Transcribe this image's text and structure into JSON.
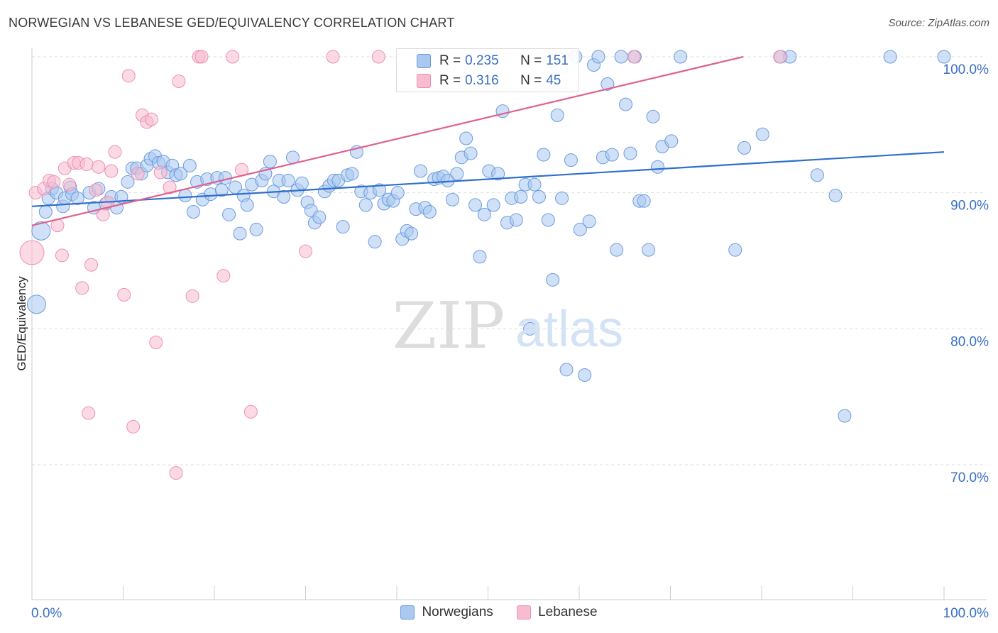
{
  "title": "NORWEGIAN VS LEBANESE GED/EQUIVALENCY CORRELATION CHART",
  "source": "Source: ZipAtlas.com",
  "colors": {
    "norwegian_fill": "#aac8f0",
    "norwegian_stroke": "#6a9be0",
    "norwegian_line": "#2f6fcc",
    "lebanese_fill": "#f8bcd0",
    "lebanese_stroke": "#ee8fb0",
    "lebanese_line": "#e0608e",
    "tick_label": "#3a6fc4",
    "grid": "#dddddd"
  },
  "stats_box": {
    "rows": [
      {
        "series": "Norwegians",
        "r_label": "R =",
        "r_value": "0.235",
        "n_label": "N =",
        "n_value": "151"
      },
      {
        "series": "Lebanese",
        "r_label": "R =",
        "r_value": "0.316",
        "n_label": "N =",
        "n_value": "45"
      }
    ]
  },
  "chart_data": {
    "type": "scatter",
    "title": "NORWEGIAN VS LEBANESE GED/EQUIVALENCY CORRELATION CHART",
    "xlabel": "",
    "ylabel": "GED/Equivalency",
    "x_tick_labels": [
      "0.0%",
      "100.0%"
    ],
    "y_tick_labels": [
      "100.0%",
      "90.0%",
      "80.0%",
      "70.0%"
    ],
    "y_ticks": [
      100,
      90,
      80,
      70
    ],
    "xlim": [
      0,
      100
    ],
    "ylim": [
      60,
      100.8
    ],
    "grid": true,
    "legend": "bottom",
    "series": [
      {
        "name": "Norwegians",
        "trend": {
          "x": [
            0,
            100
          ],
          "y": [
            89.0,
            93.0
          ]
        },
        "points": [
          [
            1.0,
            87.2,
            2
          ],
          [
            0.5,
            81.8,
            2
          ],
          [
            1.5,
            88.6,
            1
          ],
          [
            1.8,
            89.6,
            1
          ],
          [
            2.2,
            90.3,
            1
          ],
          [
            2.7,
            90.0,
            1
          ],
          [
            3.4,
            89.0,
            1
          ],
          [
            3.6,
            89.6,
            1
          ],
          [
            4.2,
            90.4,
            1
          ],
          [
            4.4,
            89.9,
            1
          ],
          [
            5.0,
            89.6,
            1
          ],
          [
            6.3,
            90.0,
            1
          ],
          [
            6.8,
            88.9,
            1
          ],
          [
            7.3,
            90.3,
            1
          ],
          [
            8.1,
            89.2,
            1
          ],
          [
            8.7,
            89.7,
            1
          ],
          [
            9.3,
            88.9,
            1
          ],
          [
            9.8,
            89.7,
            1
          ],
          [
            10.5,
            90.8,
            1
          ],
          [
            11.0,
            91.8,
            1
          ],
          [
            11.5,
            91.8,
            1
          ],
          [
            12.0,
            91.4,
            1
          ],
          [
            12.6,
            92.0,
            1
          ],
          [
            13.0,
            92.5,
            1
          ],
          [
            13.5,
            92.7,
            1
          ],
          [
            13.9,
            92.2,
            1
          ],
          [
            14.4,
            92.3,
            1
          ],
          [
            14.9,
            91.5,
            1
          ],
          [
            15.4,
            92.0,
            1
          ],
          [
            15.8,
            91.3,
            1
          ],
          [
            16.3,
            91.4,
            1
          ],
          [
            16.8,
            89.8,
            1
          ],
          [
            17.3,
            92.0,
            1
          ],
          [
            17.7,
            88.6,
            1
          ],
          [
            18.1,
            90.8,
            1
          ],
          [
            18.7,
            89.5,
            1
          ],
          [
            19.2,
            91.0,
            1
          ],
          [
            19.6,
            89.9,
            1
          ],
          [
            20.3,
            91.1,
            1
          ],
          [
            20.8,
            90.2,
            1
          ],
          [
            21.2,
            91.1,
            1
          ],
          [
            21.6,
            88.4,
            1
          ],
          [
            22.3,
            90.4,
            1
          ],
          [
            22.8,
            87.0,
            1
          ],
          [
            23.2,
            89.8,
            1
          ],
          [
            23.6,
            89.1,
            1
          ],
          [
            24.1,
            90.6,
            1
          ],
          [
            24.6,
            87.3,
            1
          ],
          [
            25.2,
            90.9,
            1
          ],
          [
            25.6,
            91.4,
            1
          ],
          [
            26.1,
            92.3,
            1
          ],
          [
            26.5,
            90.1,
            1
          ],
          [
            27.1,
            90.9,
            1
          ],
          [
            27.6,
            89.7,
            1
          ],
          [
            28.1,
            90.9,
            1
          ],
          [
            28.6,
            92.6,
            1
          ],
          [
            29.1,
            90.2,
            1
          ],
          [
            29.6,
            90.7,
            1
          ],
          [
            30.2,
            89.3,
            1
          ],
          [
            30.6,
            88.7,
            1
          ],
          [
            31.0,
            87.8,
            1
          ],
          [
            31.5,
            88.2,
            1
          ],
          [
            32.1,
            90.1,
            1
          ],
          [
            32.6,
            90.5,
            1
          ],
          [
            33.1,
            90.9,
            1
          ],
          [
            33.6,
            90.9,
            1
          ],
          [
            34.1,
            87.5,
            1
          ],
          [
            34.6,
            91.3,
            1
          ],
          [
            35.1,
            91.4,
            1
          ],
          [
            35.6,
            93.0,
            1
          ],
          [
            36.1,
            90.1,
            1
          ],
          [
            36.6,
            89.1,
            1
          ],
          [
            37.1,
            90.0,
            1
          ],
          [
            37.6,
            86.4,
            1
          ],
          [
            38.1,
            90.2,
            1
          ],
          [
            38.6,
            89.2,
            1
          ],
          [
            39.1,
            89.5,
            1
          ],
          [
            39.6,
            89.4,
            1
          ],
          [
            40.1,
            90.0,
            1
          ],
          [
            40.6,
            86.6,
            1
          ],
          [
            41.1,
            87.2,
            1
          ],
          [
            41.6,
            87.0,
            1
          ],
          [
            42.1,
            88.8,
            1
          ],
          [
            42.6,
            91.6,
            1
          ],
          [
            43.1,
            88.9,
            1
          ],
          [
            43.6,
            88.6,
            1
          ],
          [
            44.1,
            91.0,
            1
          ],
          [
            44.6,
            91.1,
            1
          ],
          [
            45.1,
            91.2,
            1
          ],
          [
            45.6,
            90.9,
            1
          ],
          [
            46.1,
            89.5,
            1
          ],
          [
            46.6,
            91.4,
            1
          ],
          [
            47.1,
            92.6,
            1
          ],
          [
            47.6,
            94.0,
            1
          ],
          [
            48.1,
            92.9,
            1
          ],
          [
            48.6,
            89.1,
            1
          ],
          [
            49.1,
            85.3,
            1
          ],
          [
            49.6,
            88.4,
            1
          ],
          [
            50.1,
            91.6,
            1
          ],
          [
            50.6,
            89.1,
            1
          ],
          [
            51.1,
            91.4,
            1
          ],
          [
            51.6,
            96.0,
            1
          ],
          [
            52.1,
            87.8,
            1
          ],
          [
            52.6,
            89.6,
            1
          ],
          [
            53.1,
            88.0,
            1
          ],
          [
            53.6,
            89.7,
            1
          ],
          [
            54.1,
            90.6,
            1
          ],
          [
            54.6,
            80.0,
            1
          ],
          [
            55.1,
            90.6,
            1
          ],
          [
            55.6,
            89.7,
            1
          ],
          [
            56.1,
            92.8,
            1
          ],
          [
            56.6,
            88.0,
            1
          ],
          [
            57.1,
            83.6,
            1
          ],
          [
            57.6,
            95.7,
            1
          ],
          [
            58.1,
            89.6,
            1
          ],
          [
            58.6,
            77.0,
            1
          ],
          [
            59.1,
            92.4,
            1
          ],
          [
            59.6,
            100.0,
            1
          ],
          [
            60.1,
            87.3,
            1
          ],
          [
            60.6,
            76.6,
            1
          ],
          [
            61.1,
            87.9,
            1
          ],
          [
            61.6,
            99.4,
            1
          ],
          [
            62.1,
            100.0,
            1
          ],
          [
            62.6,
            92.6,
            1
          ],
          [
            63.1,
            98.0,
            1
          ],
          [
            63.6,
            92.8,
            1
          ],
          [
            64.1,
            85.8,
            1
          ],
          [
            64.6,
            100.0,
            1
          ],
          [
            65.1,
            96.5,
            1
          ],
          [
            65.6,
            92.9,
            1
          ],
          [
            66.1,
            100.0,
            1
          ],
          [
            66.6,
            89.4,
            1
          ],
          [
            67.1,
            89.4,
            1
          ],
          [
            67.6,
            85.8,
            1
          ],
          [
            68.1,
            95.6,
            1
          ],
          [
            68.6,
            91.9,
            1
          ],
          [
            69.1,
            93.4,
            1
          ],
          [
            70.1,
            93.8,
            1
          ],
          [
            71.1,
            100.0,
            1
          ],
          [
            77.1,
            85.8,
            1
          ],
          [
            78.1,
            93.3,
            1
          ],
          [
            80.1,
            94.3,
            1
          ],
          [
            82.1,
            100.0,
            1
          ],
          [
            83.1,
            100.0,
            1
          ],
          [
            86.1,
            91.3,
            1
          ],
          [
            88.1,
            89.8,
            1
          ],
          [
            89.1,
            73.6,
            1
          ],
          [
            94.1,
            100.0,
            1
          ],
          [
            100.0,
            100.0,
            1
          ]
        ]
      },
      {
        "name": "Lebanese",
        "trend": {
          "x": [
            0,
            78
          ],
          "y": [
            87.6,
            100.0
          ]
        },
        "points": [
          [
            0.0,
            85.6,
            3
          ],
          [
            0.4,
            90.0,
            1
          ],
          [
            1.3,
            90.3,
            1
          ],
          [
            1.9,
            90.9,
            1
          ],
          [
            2.4,
            90.8,
            1
          ],
          [
            2.8,
            87.6,
            1
          ],
          [
            3.3,
            85.4,
            1
          ],
          [
            3.6,
            91.8,
            1
          ],
          [
            4.1,
            90.6,
            1
          ],
          [
            4.6,
            92.2,
            1
          ],
          [
            5.1,
            92.2,
            1
          ],
          [
            5.5,
            83.0,
            1
          ],
          [
            6.0,
            92.1,
            1
          ],
          [
            6.2,
            73.8,
            1
          ],
          [
            6.5,
            84.7,
            1
          ],
          [
            7.0,
            90.2,
            1
          ],
          [
            7.3,
            91.9,
            1
          ],
          [
            7.8,
            88.4,
            1
          ],
          [
            8.3,
            89.3,
            1
          ],
          [
            8.7,
            91.6,
            1
          ],
          [
            9.1,
            93.0,
            1
          ],
          [
            10.1,
            82.5,
            1
          ],
          [
            10.6,
            98.6,
            1
          ],
          [
            11.1,
            72.8,
            1
          ],
          [
            11.6,
            91.4,
            1
          ],
          [
            12.1,
            95.7,
            1
          ],
          [
            12.6,
            95.2,
            1
          ],
          [
            13.1,
            95.4,
            1
          ],
          [
            13.6,
            79.0,
            1
          ],
          [
            14.1,
            91.5,
            1
          ],
          [
            15.1,
            90.4,
            1
          ],
          [
            15.8,
            69.4,
            1
          ],
          [
            16.1,
            98.2,
            1
          ],
          [
            17.6,
            82.4,
            1
          ],
          [
            18.3,
            100.0,
            1
          ],
          [
            18.6,
            100.0,
            1
          ],
          [
            21.0,
            83.9,
            1
          ],
          [
            22.0,
            100.0,
            1
          ],
          [
            23.0,
            91.7,
            1
          ],
          [
            24.0,
            73.9,
            1
          ],
          [
            30.0,
            85.7,
            1
          ],
          [
            33.0,
            100.0,
            1
          ],
          [
            38.0,
            100.0,
            1
          ],
          [
            66.0,
            100.0,
            1
          ],
          [
            82.0,
            100.0,
            1
          ]
        ]
      }
    ]
  }
}
